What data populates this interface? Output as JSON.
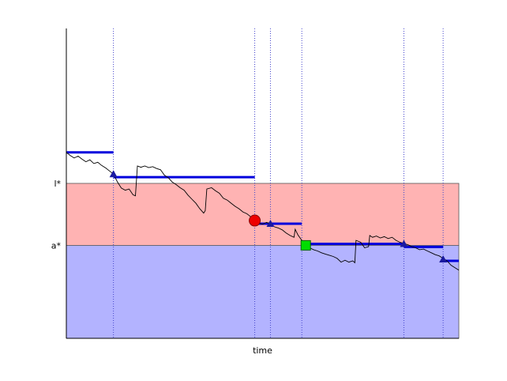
{
  "chart_data": {
    "type": "line",
    "title": "",
    "xlabel": "time",
    "ylabel": "",
    "xlim": [
      0,
      100
    ],
    "ylim": [
      0,
      100
    ],
    "grid": false,
    "y_tick_labels": [
      {
        "label": "l*",
        "value": 50
      },
      {
        "label": "a*",
        "value": 30
      }
    ],
    "bands": [
      {
        "from": 30,
        "to": 50,
        "color": "#ffb3b3"
      },
      {
        "from": 0,
        "to": 30,
        "color": "#b3b3ff"
      }
    ],
    "event_lines": [
      12,
      48,
      52,
      60,
      86,
      96
    ],
    "event_line_color": "#4444cc",
    "step_levels": [
      {
        "x0": 0,
        "x1": 12,
        "y": 60
      },
      {
        "x0": 12,
        "x1": 48,
        "y": 52
      },
      {
        "x0": 48,
        "x1": 60,
        "y": 37
      },
      {
        "x0": 60,
        "x1": 86,
        "y": 30.5
      },
      {
        "x0": 86,
        "x1": 96,
        "y": 29.5
      },
      {
        "x0": 96,
        "x1": 100,
        "y": 25
      }
    ],
    "step_color": "#0000dd",
    "markers": [
      {
        "shape": "triangle",
        "x": 12,
        "y": 53,
        "color": "#1a1aa0"
      },
      {
        "shape": "circle",
        "x": 48,
        "y": 38,
        "color": "#ee0000"
      },
      {
        "shape": "triangle",
        "x": 52,
        "y": 37,
        "color": "#1a1aa0"
      },
      {
        "shape": "square",
        "x": 61,
        "y": 30,
        "color": "#00dd00"
      },
      {
        "shape": "triangle",
        "x": 86,
        "y": 30.5,
        "color": "#1a1aa0"
      },
      {
        "shape": "triangle",
        "x": 96,
        "y": 25.5,
        "color": "#1a1aa0"
      }
    ],
    "series": [
      {
        "color": "#000000",
        "points": [
          [
            0,
            60
          ],
          [
            1,
            59
          ],
          [
            2,
            58.2
          ],
          [
            3,
            58.8
          ],
          [
            4,
            57.8
          ],
          [
            5,
            57
          ],
          [
            6,
            57.6
          ],
          [
            7,
            56.4
          ],
          [
            8,
            56.8
          ],
          [
            9,
            55.8
          ],
          [
            10,
            55
          ],
          [
            11,
            54
          ],
          [
            12,
            53
          ],
          [
            13,
            50.5
          ],
          [
            14,
            48.5
          ],
          [
            15,
            47.8
          ],
          [
            16,
            48.2
          ],
          [
            17,
            46.3
          ],
          [
            17.6,
            46
          ],
          [
            18.1,
            55.6
          ],
          [
            19,
            55.2
          ],
          [
            20,
            55.6
          ],
          [
            21,
            55.1
          ],
          [
            22,
            55.4
          ],
          [
            23,
            54.8
          ],
          [
            24,
            54.4
          ],
          [
            25,
            52.6
          ],
          [
            26,
            51.8
          ],
          [
            27,
            50.4
          ],
          [
            28,
            49.6
          ],
          [
            29,
            48.6
          ],
          [
            30,
            47.8
          ],
          [
            31,
            46.2
          ],
          [
            32,
            44.9
          ],
          [
            33,
            43.6
          ],
          [
            34,
            41.8
          ],
          [
            35,
            40.4
          ],
          [
            35.4,
            41.2
          ],
          [
            35.8,
            48.2
          ],
          [
            37,
            48.6
          ],
          [
            38,
            47.6
          ],
          [
            39,
            46.8
          ],
          [
            40,
            45.2
          ],
          [
            41,
            44.6
          ],
          [
            42,
            43.6
          ],
          [
            43,
            42.6
          ],
          [
            44,
            41.8
          ],
          [
            45,
            40.8
          ],
          [
            46,
            40.2
          ],
          [
            47,
            39.2
          ],
          [
            48,
            38.2
          ],
          [
            49,
            37.2
          ],
          [
            50,
            36.8
          ],
          [
            51,
            37.4
          ],
          [
            52,
            37
          ],
          [
            53,
            36
          ],
          [
            54,
            35.6
          ],
          [
            55,
            35
          ],
          [
            56,
            34
          ],
          [
            57,
            33.2
          ],
          [
            58,
            32.6
          ],
          [
            58.3,
            35.2
          ],
          [
            59,
            33.4
          ],
          [
            60,
            31.6
          ],
          [
            61,
            30
          ],
          [
            62,
            29.2
          ],
          [
            63,
            28.6
          ],
          [
            64,
            28.2
          ],
          [
            65,
            27.6
          ],
          [
            66,
            27.2
          ],
          [
            67,
            26.8
          ],
          [
            68,
            26.4
          ],
          [
            69,
            25.8
          ],
          [
            70,
            24.6
          ],
          [
            71,
            25.2
          ],
          [
            72,
            24.6
          ],
          [
            73,
            25
          ],
          [
            73.5,
            24.4
          ],
          [
            73.8,
            31.6
          ],
          [
            75,
            31
          ],
          [
            76,
            29.2
          ],
          [
            77,
            29.6
          ],
          [
            77.3,
            33.2
          ],
          [
            78,
            32.6
          ],
          [
            79,
            33
          ],
          [
            80,
            32.4
          ],
          [
            81,
            32.8
          ],
          [
            82,
            32.2
          ],
          [
            83,
            32.6
          ],
          [
            84,
            31.6
          ],
          [
            85,
            31
          ],
          [
            86,
            30.6
          ],
          [
            87,
            30.2
          ],
          [
            88,
            29.6
          ],
          [
            89,
            29.2
          ],
          [
            90,
            28.6
          ],
          [
            91,
            28.8
          ],
          [
            92,
            28.2
          ],
          [
            93,
            27.6
          ],
          [
            94,
            27
          ],
          [
            95,
            26.6
          ],
          [
            96,
            25.8
          ],
          [
            97,
            25
          ],
          [
            98,
            23.6
          ],
          [
            99,
            22.8
          ],
          [
            100,
            22
          ]
        ]
      }
    ]
  }
}
